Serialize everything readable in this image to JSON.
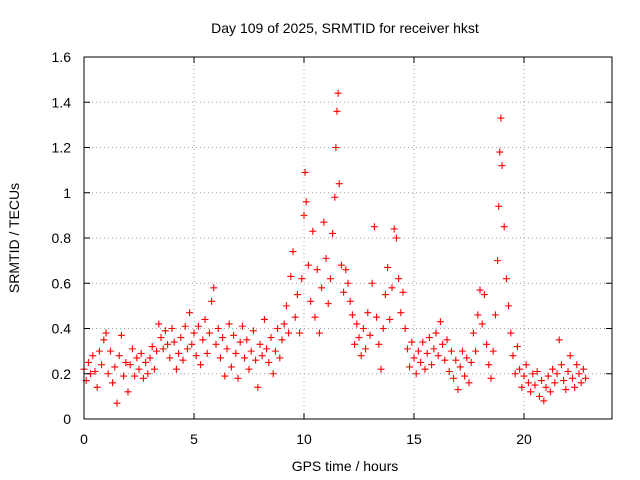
{
  "chart_data": {
    "type": "scatter",
    "title": "Day 109 of 2025, SRMTID for receiver hkst",
    "xlabel": "GPS time / hours",
    "ylabel": "SRMTID / TECUs",
    "xlim": [
      0,
      24
    ],
    "ylim": [
      0,
      1.6
    ],
    "xticks": [
      0,
      5,
      10,
      15,
      20
    ],
    "xtick_labels": [
      "0",
      "5",
      "10",
      "15",
      "20"
    ],
    "yticks": [
      0,
      0.2,
      0.4,
      0.6,
      0.8,
      1.0,
      1.2,
      1.4,
      1.6
    ],
    "ytick_labels": [
      "0",
      "0.2",
      "0.4",
      "0.6",
      "0.8",
      "1",
      "1.2",
      "1.4",
      "1.6"
    ],
    "grid": true,
    "marker": "+",
    "series": [
      {
        "name": "SRMTID",
        "color": "#ff0000",
        "points": [
          [
            0.0,
            0.22
          ],
          [
            0.1,
            0.17
          ],
          [
            0.2,
            0.25
          ],
          [
            0.3,
            0.2
          ],
          [
            0.4,
            0.28
          ],
          [
            0.5,
            0.21
          ],
          [
            0.6,
            0.14
          ],
          [
            0.7,
            0.3
          ],
          [
            0.8,
            0.24
          ],
          [
            0.9,
            0.35
          ],
          [
            1.0,
            0.38
          ],
          [
            1.1,
            0.2
          ],
          [
            1.2,
            0.3
          ],
          [
            1.3,
            0.16
          ],
          [
            1.4,
            0.23
          ],
          [
            1.5,
            0.07
          ],
          [
            1.6,
            0.28
          ],
          [
            1.7,
            0.37
          ],
          [
            1.8,
            0.19
          ],
          [
            1.9,
            0.25
          ],
          [
            2.0,
            0.12
          ],
          [
            2.1,
            0.24
          ],
          [
            2.2,
            0.31
          ],
          [
            2.3,
            0.19
          ],
          [
            2.4,
            0.27
          ],
          [
            2.5,
            0.22
          ],
          [
            2.6,
            0.29
          ],
          [
            2.7,
            0.18
          ],
          [
            2.8,
            0.25
          ],
          [
            2.9,
            0.2
          ],
          [
            3.0,
            0.27
          ],
          [
            3.1,
            0.32
          ],
          [
            3.2,
            0.22
          ],
          [
            3.3,
            0.3
          ],
          [
            3.4,
            0.42
          ],
          [
            3.5,
            0.36
          ],
          [
            3.6,
            0.31
          ],
          [
            3.7,
            0.39
          ],
          [
            3.8,
            0.33
          ],
          [
            3.9,
            0.27
          ],
          [
            4.0,
            0.4
          ],
          [
            4.1,
            0.34
          ],
          [
            4.2,
            0.22
          ],
          [
            4.3,
            0.29
          ],
          [
            4.4,
            0.36
          ],
          [
            4.5,
            0.26
          ],
          [
            4.6,
            0.41
          ],
          [
            4.7,
            0.31
          ],
          [
            4.8,
            0.47
          ],
          [
            4.9,
            0.33
          ],
          [
            5.0,
            0.38
          ],
          [
            5.1,
            0.28
          ],
          [
            5.2,
            0.41
          ],
          [
            5.3,
            0.24
          ],
          [
            5.4,
            0.35
          ],
          [
            5.5,
            0.44
          ],
          [
            5.6,
            0.29
          ],
          [
            5.7,
            0.38
          ],
          [
            5.8,
            0.52
          ],
          [
            5.9,
            0.58
          ],
          [
            6.0,
            0.33
          ],
          [
            6.1,
            0.4
          ],
          [
            6.2,
            0.27
          ],
          [
            6.3,
            0.36
          ],
          [
            6.4,
            0.19
          ],
          [
            6.5,
            0.31
          ],
          [
            6.6,
            0.42
          ],
          [
            6.7,
            0.23
          ],
          [
            6.8,
            0.37
          ],
          [
            6.9,
            0.29
          ],
          [
            7.0,
            0.18
          ],
          [
            7.1,
            0.34
          ],
          [
            7.2,
            0.41
          ],
          [
            7.3,
            0.27
          ],
          [
            7.4,
            0.35
          ],
          [
            7.5,
            0.22
          ],
          [
            7.6,
            0.3
          ],
          [
            7.7,
            0.39
          ],
          [
            7.8,
            0.26
          ],
          [
            7.9,
            0.14
          ],
          [
            8.0,
            0.33
          ],
          [
            8.1,
            0.28
          ],
          [
            8.2,
            0.44
          ],
          [
            8.3,
            0.31
          ],
          [
            8.4,
            0.25
          ],
          [
            8.5,
            0.36
          ],
          [
            8.6,
            0.2
          ],
          [
            8.7,
            0.3
          ],
          [
            8.8,
            0.4
          ],
          [
            8.9,
            0.27
          ],
          [
            9.0,
            0.35
          ],
          [
            9.1,
            0.42
          ],
          [
            9.2,
            0.5
          ],
          [
            9.3,
            0.38
          ],
          [
            9.4,
            0.63
          ],
          [
            9.5,
            0.74
          ],
          [
            9.6,
            0.45
          ],
          [
            9.7,
            0.55
          ],
          [
            9.8,
            0.38
          ],
          [
            9.9,
            0.62
          ],
          [
            10.0,
            0.9
          ],
          [
            10.05,
            1.09
          ],
          [
            10.1,
            0.96
          ],
          [
            10.2,
            0.68
          ],
          [
            10.3,
            0.52
          ],
          [
            10.4,
            0.83
          ],
          [
            10.5,
            0.45
          ],
          [
            10.6,
            0.66
          ],
          [
            10.7,
            0.38
          ],
          [
            10.8,
            0.58
          ],
          [
            10.9,
            0.87
          ],
          [
            11.0,
            0.71
          ],
          [
            11.1,
            0.51
          ],
          [
            11.2,
            0.62
          ],
          [
            11.3,
            0.82
          ],
          [
            11.4,
            0.98
          ],
          [
            11.45,
            1.2
          ],
          [
            11.5,
            1.36
          ],
          [
            11.55,
            1.44
          ],
          [
            11.6,
            1.04
          ],
          [
            11.7,
            0.68
          ],
          [
            11.8,
            0.56
          ],
          [
            11.9,
            0.66
          ],
          [
            12.0,
            0.6
          ],
          [
            12.1,
            0.52
          ],
          [
            12.2,
            0.46
          ],
          [
            12.3,
            0.33
          ],
          [
            12.4,
            0.42
          ],
          [
            12.5,
            0.36
          ],
          [
            12.6,
            0.28
          ],
          [
            12.7,
            0.4
          ],
          [
            12.8,
            0.31
          ],
          [
            12.9,
            0.47
          ],
          [
            13.0,
            0.37
          ],
          [
            13.1,
            0.6
          ],
          [
            13.2,
            0.85
          ],
          [
            13.3,
            0.45
          ],
          [
            13.4,
            0.33
          ],
          [
            13.5,
            0.22
          ],
          [
            13.6,
            0.4
          ],
          [
            13.7,
            0.55
          ],
          [
            13.8,
            0.67
          ],
          [
            13.9,
            0.44
          ],
          [
            14.0,
            0.58
          ],
          [
            14.1,
            0.84
          ],
          [
            14.2,
            0.8
          ],
          [
            14.3,
            0.62
          ],
          [
            14.4,
            0.47
          ],
          [
            14.5,
            0.56
          ],
          [
            14.6,
            0.4
          ],
          [
            14.7,
            0.31
          ],
          [
            14.8,
            0.23
          ],
          [
            14.9,
            0.34
          ],
          [
            15.0,
            0.27
          ],
          [
            15.1,
            0.2
          ],
          [
            15.2,
            0.3
          ],
          [
            15.3,
            0.25
          ],
          [
            15.4,
            0.34
          ],
          [
            15.5,
            0.22
          ],
          [
            15.6,
            0.29
          ],
          [
            15.7,
            0.36
          ],
          [
            15.8,
            0.24
          ],
          [
            15.9,
            0.31
          ],
          [
            16.0,
            0.38
          ],
          [
            16.1,
            0.28
          ],
          [
            16.2,
            0.43
          ],
          [
            16.3,
            0.33
          ],
          [
            16.4,
            0.26
          ],
          [
            16.5,
            0.35
          ],
          [
            16.6,
            0.21
          ],
          [
            16.7,
            0.3
          ],
          [
            16.8,
            0.18
          ],
          [
            16.9,
            0.26
          ],
          [
            17.0,
            0.13
          ],
          [
            17.1,
            0.23
          ],
          [
            17.2,
            0.3
          ],
          [
            17.3,
            0.19
          ],
          [
            17.4,
            0.27
          ],
          [
            17.5,
            0.16
          ],
          [
            17.6,
            0.25
          ],
          [
            17.7,
            0.38
          ],
          [
            17.8,
            0.3
          ],
          [
            17.9,
            0.46
          ],
          [
            18.0,
            0.57
          ],
          [
            18.1,
            0.42
          ],
          [
            18.2,
            0.55
          ],
          [
            18.3,
            0.33
          ],
          [
            18.4,
            0.24
          ],
          [
            18.5,
            0.18
          ],
          [
            18.6,
            0.3
          ],
          [
            18.7,
            0.46
          ],
          [
            18.8,
            0.7
          ],
          [
            18.85,
            0.94
          ],
          [
            18.9,
            1.18
          ],
          [
            18.95,
            1.33
          ],
          [
            19.0,
            1.12
          ],
          [
            19.1,
            0.85
          ],
          [
            19.2,
            0.62
          ],
          [
            19.3,
            0.5
          ],
          [
            19.4,
            0.38
          ],
          [
            19.5,
            0.28
          ],
          [
            19.6,
            0.2
          ],
          [
            19.7,
            0.32
          ],
          [
            19.8,
            0.22
          ],
          [
            19.9,
            0.14
          ],
          [
            20.0,
            0.19
          ],
          [
            20.1,
            0.24
          ],
          [
            20.2,
            0.16
          ],
          [
            20.3,
            0.12
          ],
          [
            20.4,
            0.2
          ],
          [
            20.5,
            0.15
          ],
          [
            20.6,
            0.21
          ],
          [
            20.7,
            0.1
          ],
          [
            20.8,
            0.17
          ],
          [
            20.9,
            0.08
          ],
          [
            21.0,
            0.14
          ],
          [
            21.1,
            0.19
          ],
          [
            21.2,
            0.12
          ],
          [
            21.3,
            0.22
          ],
          [
            21.4,
            0.16
          ],
          [
            21.5,
            0.2
          ],
          [
            21.6,
            0.35
          ],
          [
            21.7,
            0.24
          ],
          [
            21.8,
            0.17
          ],
          [
            21.9,
            0.13
          ],
          [
            22.0,
            0.21
          ],
          [
            22.1,
            0.28
          ],
          [
            22.2,
            0.18
          ],
          [
            22.3,
            0.14
          ],
          [
            22.4,
            0.24
          ],
          [
            22.5,
            0.2
          ],
          [
            22.6,
            0.16
          ],
          [
            22.7,
            0.22
          ],
          [
            22.8,
            0.18
          ]
        ]
      }
    ]
  }
}
